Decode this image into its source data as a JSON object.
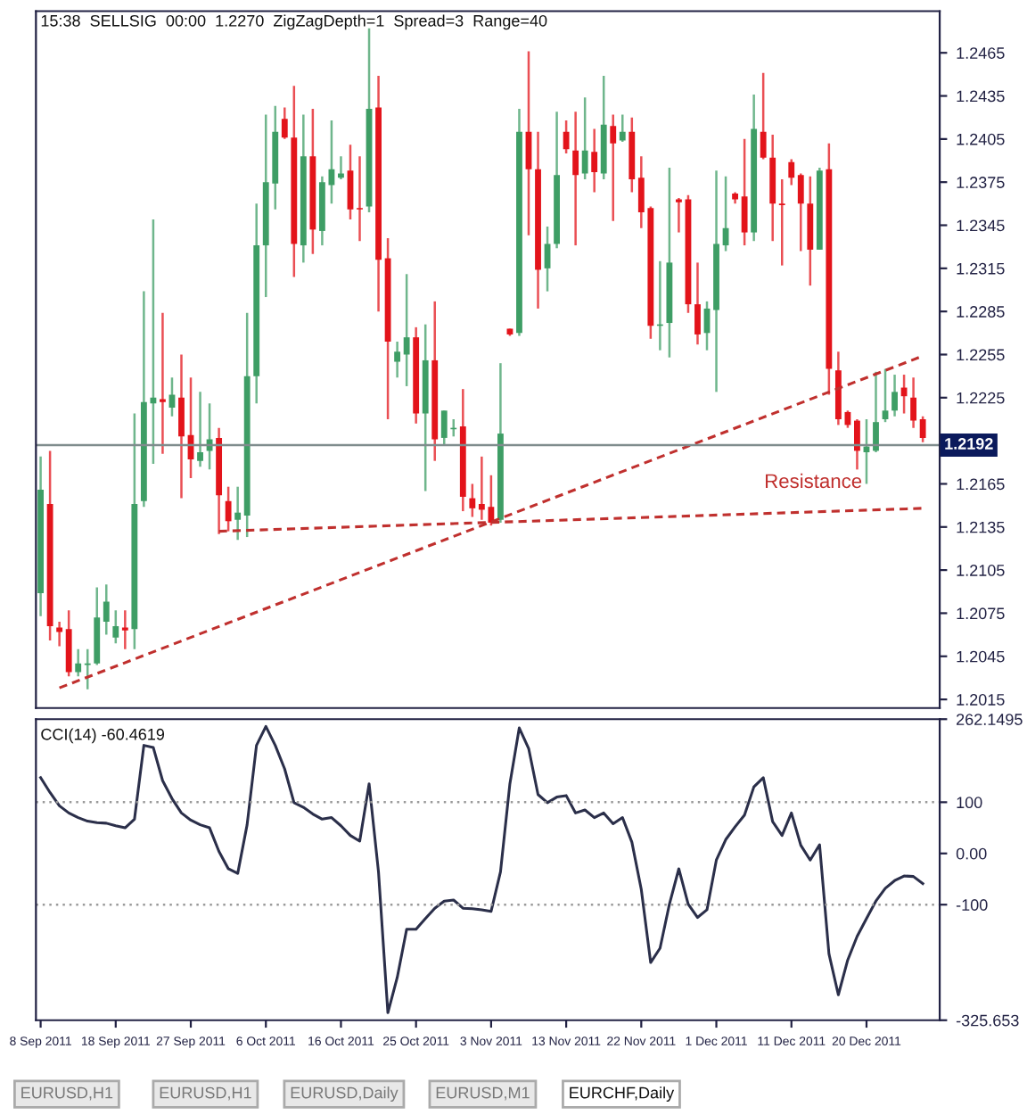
{
  "chart_data": [
    {
      "type": "candlestick",
      "title": "15:38  SELLSIG  00:00  1.2270  ZigZagDepth=1  Spread=3  Range=40",
      "categories": [
        null,
        null,
        null,
        null,
        null,
        null,
        null,
        null,
        null,
        null,
        null,
        null,
        null,
        null,
        null,
        null,
        null,
        null,
        null,
        null,
        null,
        null,
        null,
        null,
        null,
        null,
        null,
        null,
        null,
        null,
        null,
        null,
        null,
        null,
        null,
        null,
        null,
        null,
        null,
        null,
        null,
        null,
        null,
        null,
        null,
        null,
        null,
        null,
        null,
        null,
        null,
        null,
        null,
        null,
        null,
        null,
        null,
        null,
        null,
        null,
        null,
        null,
        null,
        null,
        null,
        null,
        null,
        null,
        null,
        null,
        null,
        null,
        null,
        null,
        null,
        null,
        null,
        null,
        null,
        null,
        null,
        null,
        null,
        null,
        null,
        null,
        null,
        null,
        null,
        null,
        null,
        null,
        null,
        null,
        null
      ],
      "ohlc": [
        [
          1.2089,
          1.2184,
          1.2073,
          1.2161
        ],
        [
          1.2151,
          1.2188,
          1.2056,
          1.2066
        ],
        [
          1.2065,
          1.2069,
          1.2052,
          1.2062
        ],
        [
          1.2064,
          1.2077,
          1.2031,
          1.2034
        ],
        [
          1.2034,
          1.205,
          1.2031,
          1.204
        ],
        [
          1.2039,
          1.205,
          1.2022,
          1.204
        ],
        [
          1.204,
          1.2093,
          1.2039,
          1.2072
        ],
        [
          1.2069,
          1.2095,
          1.206,
          1.2083
        ],
        [
          1.2058,
          1.2077,
          1.2054,
          1.2066
        ],
        [
          1.2065,
          1.2077,
          1.205,
          1.2063
        ],
        [
          1.2064,
          1.2214,
          1.205,
          1.2151
        ],
        [
          1.2153,
          1.2299,
          1.2149,
          1.2222
        ],
        [
          1.2221,
          1.2349,
          1.2179,
          1.2225
        ],
        [
          1.2224,
          1.2284,
          1.2186,
          1.2222
        ],
        [
          1.2218,
          1.2239,
          1.2212,
          1.2227
        ],
        [
          1.2225,
          1.2255,
          1.2155,
          1.2198
        ],
        [
          1.2199,
          1.2239,
          1.2169,
          1.2182
        ],
        [
          1.2181,
          1.2229,
          1.2177,
          1.2187
        ],
        [
          1.2188,
          1.2221,
          1.2175,
          1.2196
        ],
        [
          1.2197,
          1.2204,
          1.213,
          1.2157
        ],
        [
          1.2153,
          1.2163,
          1.2132,
          1.2139
        ],
        [
          1.214,
          1.2163,
          1.2126,
          1.2145
        ],
        [
          1.2143,
          1.2284,
          1.2128,
          1.224
        ],
        [
          1.224,
          1.236,
          1.2221,
          1.2331
        ],
        [
          1.2331,
          1.2422,
          1.2295,
          1.2375
        ],
        [
          1.2374,
          1.2428,
          1.2356,
          1.241
        ],
        [
          1.2419,
          1.2427,
          1.2405,
          1.2406
        ],
        [
          1.2406,
          1.2442,
          1.2309,
          1.2332
        ],
        [
          1.2331,
          1.2422,
          1.2319,
          1.2393
        ],
        [
          1.2393,
          1.2426,
          1.2325,
          1.2342
        ],
        [
          1.2341,
          1.2379,
          1.2331,
          1.2375
        ],
        [
          1.2373,
          1.2418,
          1.236,
          1.2384
        ],
        [
          1.2378,
          1.2393,
          1.2377,
          1.2381
        ],
        [
          1.2383,
          1.2401,
          1.2349,
          1.2356
        ],
        [
          1.2357,
          1.2393,
          1.2334,
          1.2356
        ],
        [
          1.2358,
          1.2482,
          1.2354,
          1.2426
        ],
        [
          1.2427,
          1.2449,
          1.2285,
          1.2321
        ],
        [
          1.2322,
          1.2336,
          1.221,
          1.2264
        ],
        [
          1.225,
          1.2264,
          1.2239,
          1.2257
        ],
        [
          1.2255,
          1.2311,
          1.2233,
          1.2267
        ],
        [
          1.2267,
          1.2274,
          1.2207,
          1.2214
        ],
        [
          1.2214,
          1.2276,
          1.216,
          1.2251
        ],
        [
          1.2251,
          1.2292,
          1.2181,
          1.2196
        ],
        [
          1.2197,
          1.2216,
          1.2192,
          1.2216
        ],
        [
          1.2203,
          1.221,
          1.2198,
          1.2204
        ],
        [
          1.2205,
          1.2231,
          1.2146,
          1.2156
        ],
        [
          1.2155,
          1.2165,
          1.2142,
          1.2148
        ],
        [
          1.2151,
          1.2184,
          1.214,
          1.2147
        ],
        [
          1.2149,
          1.2171,
          1.2136,
          1.2138
        ],
        [
          1.214,
          1.2249,
          1.2138,
          1.22
        ],
        [
          1.2273,
          1.2273,
          1.2268,
          1.2269
        ],
        [
          1.227,
          1.2426,
          1.2268,
          1.241
        ],
        [
          1.241,
          1.2466,
          1.2338,
          1.2384
        ],
        [
          1.2384,
          1.241,
          1.2287,
          1.2314
        ],
        [
          1.2315,
          1.2344,
          1.2299,
          1.2332
        ],
        [
          1.2332,
          1.2424,
          1.2329,
          1.238
        ],
        [
          1.241,
          1.2418,
          1.2395,
          1.2398
        ],
        [
          1.2397,
          1.2424,
          1.2331,
          1.238
        ],
        [
          1.2381,
          1.2434,
          1.2377,
          1.2397
        ],
        [
          1.2396,
          1.2412,
          1.2368,
          1.2382
        ],
        [
          1.2381,
          1.2449,
          1.2377,
          1.2415
        ],
        [
          1.2414,
          1.2422,
          1.2348,
          1.2402
        ],
        [
          1.2404,
          1.2422,
          1.2403,
          1.241
        ],
        [
          1.241,
          1.242,
          1.2368,
          1.2377
        ],
        [
          1.2378,
          1.2393,
          1.2343,
          1.2354
        ],
        [
          1.2357,
          1.2358,
          1.2266,
          1.2275
        ],
        [
          1.2275,
          1.232,
          1.2258,
          1.2276
        ],
        [
          1.2277,
          1.2385,
          1.2253,
          1.2319
        ],
        [
          1.2363,
          1.2364,
          1.234,
          1.2361
        ],
        [
          1.2363,
          1.2366,
          1.2284,
          1.229
        ],
        [
          1.229,
          1.2319,
          1.2262,
          1.2269
        ],
        [
          1.227,
          1.2292,
          1.2258,
          1.2287
        ],
        [
          1.2286,
          1.2383,
          1.2229,
          1.2332
        ],
        [
          1.2331,
          1.2379,
          1.2327,
          1.2343
        ],
        [
          1.2367,
          1.2368,
          1.236,
          1.2363
        ],
        [
          1.2365,
          1.2405,
          1.2331,
          1.234
        ],
        [
          1.234,
          1.2436,
          1.2334,
          1.2412
        ],
        [
          1.241,
          1.2451,
          1.2391,
          1.2392
        ],
        [
          1.2392,
          1.2408,
          1.2334,
          1.236
        ],
        [
          1.236,
          1.2377,
          1.2317,
          1.2359
        ],
        [
          1.2389,
          1.2391,
          1.2373,
          1.2378
        ],
        [
          1.238,
          1.2381,
          1.2327,
          1.236
        ],
        [
          1.236,
          1.2379,
          1.2303,
          1.2328
        ],
        [
          1.2328,
          1.2385,
          1.2328,
          1.2383
        ],
        [
          1.2384,
          1.2402,
          1.2227,
          1.2245
        ],
        [
          1.2244,
          1.2257,
          1.2206,
          1.221
        ],
        [
          1.2215,
          1.2216,
          1.2204,
          1.2206
        ],
        [
          1.2209,
          1.221,
          1.2175,
          1.2188
        ],
        [
          1.2187,
          1.221,
          1.2165,
          1.2191
        ],
        [
          1.2188,
          1.2243,
          1.2187,
          1.2208
        ],
        [
          1.221,
          1.2245,
          1.2208,
          1.2216
        ],
        [
          1.2216,
          1.2241,
          1.2212,
          1.2229
        ],
        [
          1.2232,
          1.2241,
          1.2214,
          1.2226
        ],
        [
          1.2225,
          1.2239,
          1.2204,
          1.2209
        ],
        [
          1.221,
          1.2212,
          1.2194,
          1.2197
        ]
      ],
      "colors": [
        "#3f9e66",
        "#e3141b",
        "#e3141b",
        "#e3141b",
        "#3f9e66",
        "#3f9e66",
        "#3f9e66",
        "#3f9e66",
        "#3f9e66",
        "#e3141b",
        "#3f9e66",
        "#3f9e66",
        "#3f9e66",
        "#e3141b",
        "#3f9e66",
        "#e3141b",
        "#e3141b",
        "#3f9e66",
        "#3f9e66",
        "#e3141b",
        "#e3141b",
        "#3f9e66",
        "#3f9e66",
        "#3f9e66",
        "#3f9e66",
        "#3f9e66",
        "#e3141b",
        "#e3141b",
        "#3f9e66",
        "#e3141b",
        "#3f9e66",
        "#3f9e66",
        "#3f9e66",
        "#e3141b",
        "#e3141b",
        "#3f9e66",
        "#e3141b",
        "#e3141b",
        "#3f9e66",
        "#3f9e66",
        "#e3141b",
        "#3f9e66",
        "#e3141b",
        "#3f9e66",
        "#3f9e66",
        "#e3141b",
        "#e3141b",
        "#e3141b",
        "#e3141b",
        "#3f9e66",
        "#e3141b",
        "#3f9e66",
        "#e3141b",
        "#e3141b",
        "#3f9e66",
        "#3f9e66",
        "#e3141b",
        "#e3141b",
        "#3f9e66",
        "#e3141b",
        "#3f9e66",
        "#e3141b",
        "#3f9e66",
        "#e3141b",
        "#e3141b",
        "#e3141b",
        "#3f9e66",
        "#3f9e66",
        "#e3141b",
        "#e3141b",
        "#e3141b",
        "#3f9e66",
        "#3f9e66",
        "#3f9e66",
        "#e3141b",
        "#e3141b",
        "#3f9e66",
        "#e3141b",
        "#e3141b",
        "#e3141b",
        "#e3141b",
        "#e3141b",
        "#e3141b",
        "#3f9e66",
        "#e3141b",
        "#e3141b",
        "#e3141b",
        "#e3141b",
        "#3f9e66",
        "#3f9e66",
        "#3f9e66",
        "#3f9e66",
        "#e3141b",
        "#e3141b",
        "#e3141b"
      ],
      "series": [
        {
          "type": "line",
          "color": "#c0302e",
          "line_style": "dashed",
          "values": [
            null,
            null,
            1.2023,
            null,
            null,
            null,
            null,
            null,
            null,
            null,
            null,
            null,
            null,
            null,
            null,
            null,
            null,
            null,
            null,
            null,
            null,
            null,
            null,
            null,
            null,
            null,
            null,
            null,
            null,
            null,
            null,
            null,
            null,
            null,
            null,
            null,
            null,
            null,
            null,
            null,
            null,
            null,
            null,
            null,
            null,
            null,
            null,
            null,
            null,
            null,
            null,
            null,
            null,
            null,
            null,
            null,
            null,
            null,
            null,
            null,
            null,
            null,
            null,
            null,
            null,
            null,
            null,
            null,
            null,
            null,
            null,
            null,
            null,
            null,
            null,
            null,
            null,
            null,
            null,
            null,
            null,
            null,
            null,
            null,
            null,
            null,
            null,
            null,
            null,
            null,
            null,
            null,
            null,
            null,
            1.2254
          ]
        },
        {
          "type": "line",
          "color": "#c0302e",
          "line_style": "dashed",
          "values": [
            null,
            null,
            null,
            null,
            null,
            null,
            null,
            null,
            null,
            null,
            null,
            null,
            null,
            null,
            null,
            null,
            null,
            null,
            null,
            1.2132,
            null,
            null,
            null,
            null,
            null,
            null,
            null,
            null,
            null,
            null,
            null,
            null,
            null,
            null,
            null,
            null,
            null,
            null,
            null,
            null,
            null,
            null,
            null,
            null,
            null,
            null,
            null,
            null,
            null,
            null,
            null,
            null,
            null,
            null,
            null,
            null,
            null,
            null,
            null,
            null,
            null,
            null,
            null,
            null,
            null,
            null,
            null,
            null,
            null,
            null,
            null,
            null,
            null,
            null,
            null,
            null,
            null,
            null,
            null,
            null,
            null,
            null,
            null,
            null,
            null,
            null,
            null,
            null,
            null,
            null,
            null,
            null,
            null,
            null,
            1.2148
          ]
        }
      ],
      "ref_lines": [
        {
          "axis": "y",
          "value": 1.2192,
          "label": "1.2192",
          "color": "#7f8c8d"
        }
      ],
      "annotations": [
        "Resistance"
      ],
      "ylim": [
        1.2009,
        1.2494
      ],
      "yticks": [
        1.2015,
        1.2045,
        1.2075,
        1.2105,
        1.2135,
        1.2165,
        1.2225,
        1.2255,
        1.2285,
        1.2315,
        1.2345,
        1.2375,
        1.2405,
        1.2435,
        1.2465
      ],
      "tick_labels": "y"
    },
    {
      "type": "line",
      "title": "CCI(14) -60.4619",
      "categories": [
        "8 Sep 2011",
        null,
        null,
        null,
        null,
        null,
        null,
        null,
        "18 Sep 2011",
        null,
        null,
        null,
        null,
        null,
        null,
        null,
        "27 Sep 2011",
        null,
        null,
        null,
        null,
        null,
        null,
        null,
        "6 Oct 2011",
        null,
        null,
        null,
        null,
        null,
        null,
        null,
        "16 Oct 2011",
        null,
        null,
        null,
        null,
        null,
        null,
        null,
        "25 Oct 2011",
        null,
        null,
        null,
        null,
        null,
        null,
        null,
        "3 Nov 2011",
        null,
        null,
        null,
        null,
        null,
        null,
        null,
        "13 Nov 2011",
        null,
        null,
        null,
        null,
        null,
        null,
        null,
        "22 Nov 2011",
        null,
        null,
        null,
        null,
        null,
        null,
        null,
        "1 Dec 2011",
        null,
        null,
        null,
        null,
        null,
        null,
        null,
        "11 Dec 2011",
        null,
        null,
        null,
        null,
        null,
        null,
        null,
        "20 Dec 2011",
        null,
        null,
        null,
        null,
        null,
        null
      ],
      "series": [
        {
          "color": "#2b2f4a",
          "values": [
            148,
            119,
            93,
            79,
            70,
            63,
            60,
            59,
            54,
            50,
            67,
            211,
            207,
            142,
            107,
            79,
            65,
            56,
            50,
            4,
            -30,
            -39,
            56,
            211,
            248,
            211,
            165,
            99,
            90,
            77,
            67,
            70,
            54,
            35,
            24,
            136,
            -36,
            -311,
            -242,
            -148,
            -148,
            -127,
            -107,
            -93,
            -91,
            -107,
            -108,
            -110,
            -113,
            -36,
            136,
            245,
            205,
            115,
            99,
            110,
            113,
            79,
            85,
            70,
            79,
            58,
            70,
            22,
            -70,
            -213,
            -185,
            -99,
            -30,
            -99,
            -125,
            -110,
            -13,
            27,
            52,
            75,
            130,
            148,
            62,
            35,
            79,
            16,
            -13,
            17,
            -196,
            -276,
            -208,
            -162,
            -127,
            -93,
            -68,
            -53,
            -44,
            -45,
            -59
          ]
        }
      ],
      "ref_lines": [
        {
          "axis": "y",
          "value": 100,
          "color": "#9a9a9a",
          "line_style": "dotted"
        },
        {
          "axis": "y",
          "value": -100,
          "color": "#9a9a9a",
          "line_style": "dotted"
        }
      ],
      "annotations": [
        "EURUSD,H1",
        "EURUSD,H1",
        "EURUSD,Daily",
        "EURUSD,M1",
        "EURCHF,Daily"
      ],
      "ylim": [
        -325.653,
        262.1495
      ],
      "yticks": [
        {
          "value": -325.653,
          "label": "-325.653"
        },
        -100,
        {
          "value": 0,
          "label": "0.00"
        },
        100,
        {
          "value": 262.1495,
          "label": "262.1495"
        }
      ]
    }
  ]
}
